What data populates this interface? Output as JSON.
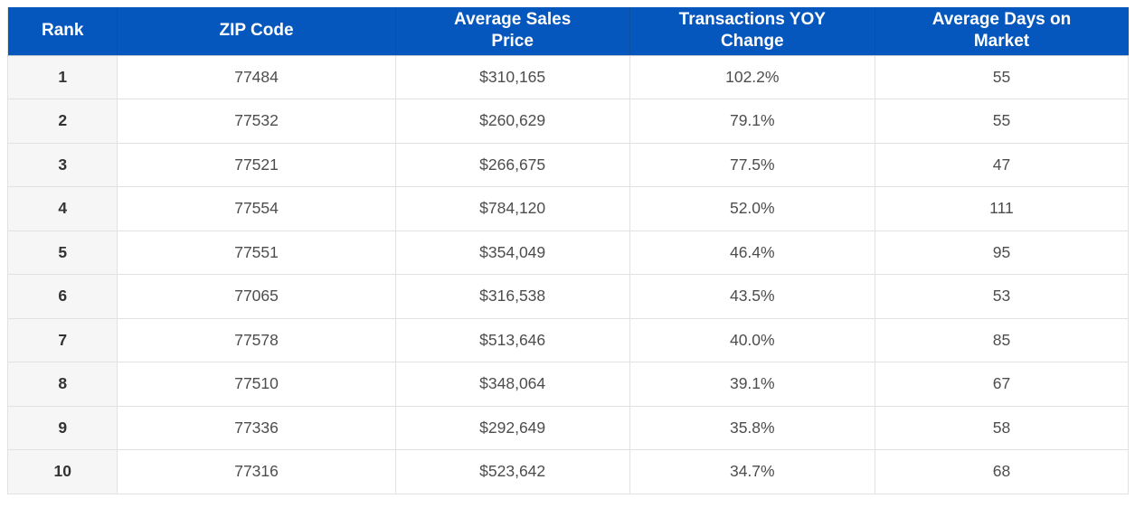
{
  "chart_data": {
    "type": "table",
    "title": "",
    "columns": [
      "Rank",
      "ZIP Code",
      "Average Sales Price",
      "Transactions YOY Change",
      "Average Days on Market"
    ],
    "rows": [
      [
        "1",
        "77484",
        "$310,165",
        "102.2%",
        "55"
      ],
      [
        "2",
        "77532",
        "$260,629",
        "79.1%",
        "55"
      ],
      [
        "3",
        "77521",
        "$266,675",
        "77.5%",
        "47"
      ],
      [
        "4",
        "77554",
        "$784,120",
        "52.0%",
        "111"
      ],
      [
        "5",
        "77551",
        "$354,049",
        "46.4%",
        "95"
      ],
      [
        "6",
        "77065",
        "$316,538",
        "43.5%",
        "53"
      ],
      [
        "7",
        "77578",
        "$513,646",
        "40.0%",
        "85"
      ],
      [
        "8",
        "77510",
        "$348,064",
        "39.1%",
        "67"
      ],
      [
        "9",
        "77336",
        "$292,649",
        "35.8%",
        "58"
      ],
      [
        "10",
        "77316",
        "$523,642",
        "34.7%",
        "68"
      ]
    ],
    "colors": {
      "header_bg": "#0657bd",
      "header_text": "#ffffff",
      "header_divider": "#0d4fa0",
      "rank_column_bg": "#f6f6f6",
      "row_bg": "#ffffff",
      "border": "#e2e2e2",
      "cell_text": "#4d4d4d",
      "rank_text": "#333333"
    }
  }
}
